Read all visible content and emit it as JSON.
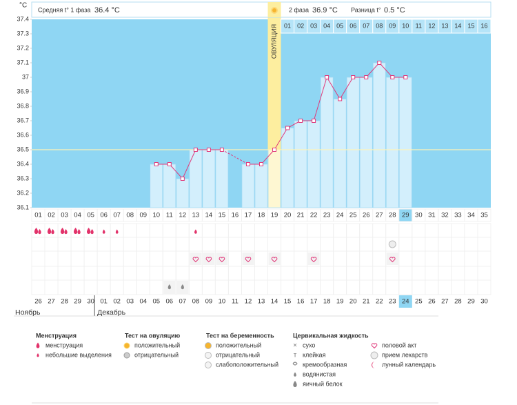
{
  "chart_data": {
    "type": "line",
    "unit_label": "°C",
    "header": {
      "phase1_label": "Средняя t° 1 фаза",
      "phase1_value": "36.4 °C",
      "phase2_label": "2 фаза",
      "phase2_value": "36.9 °C",
      "diff_label": "Разница t°",
      "diff_value": "0.5 °C"
    },
    "ovulation_label": "ОВУЛЯЦИЯ",
    "ovulation_index": 18,
    "categories": [
      "01",
      "02",
      "03",
      "04",
      "05",
      "06",
      "07",
      "08",
      "09",
      "10",
      "11",
      "12",
      "13",
      "14",
      "15",
      "16",
      "17",
      "18",
      "19",
      "20",
      "21",
      "22",
      "23",
      "24",
      "25",
      "26",
      "27",
      "28",
      "29",
      "30",
      "31",
      "32",
      "33",
      "34",
      "35"
    ],
    "luteal_days": [
      "01",
      "02",
      "03",
      "04",
      "05",
      "06",
      "07",
      "08",
      "09",
      "10",
      "11",
      "12",
      "13",
      "14",
      "15",
      "16"
    ],
    "series": [
      {
        "name": "Температура",
        "color": "#e0397a",
        "values": [
          null,
          null,
          null,
          null,
          null,
          null,
          null,
          null,
          null,
          36.4,
          36.4,
          36.3,
          36.5,
          36.5,
          36.5,
          null,
          36.4,
          36.4,
          36.5,
          36.65,
          36.7,
          36.7,
          37.0,
          36.85,
          37.0,
          37.0,
          37.1,
          37.0,
          37.0,
          null,
          null,
          null,
          null,
          null,
          null
        ]
      }
    ],
    "coverline": 36.5,
    "ylim": [
      36.1,
      37.4
    ],
    "yticks": [
      36.1,
      36.2,
      36.3,
      36.4,
      36.5,
      36.6,
      36.7,
      36.8,
      36.9,
      37,
      37.1,
      37.2,
      37.3,
      37.4
    ],
    "dates": [
      "26",
      "27",
      "28",
      "29",
      "30",
      "01",
      "02",
      "03",
      "04",
      "05",
      "06",
      "07",
      "08",
      "09",
      "10",
      "11",
      "12",
      "13",
      "14",
      "15",
      "16",
      "17",
      "18",
      "19",
      "20",
      "21",
      "22",
      "23",
      "24",
      "25",
      "26",
      "27",
      "28",
      "29",
      "30"
    ],
    "weekend_dates": [
      4,
      5,
      11,
      12,
      18,
      19,
      25,
      26,
      32,
      33
    ],
    "today_index": 28,
    "months": [
      {
        "label": "Ноябрь",
        "start": 0
      },
      {
        "label": "Декабрь",
        "start": 5
      }
    ],
    "menstruation_days": [
      0,
      1,
      2,
      3,
      4
    ],
    "spotting_days": [
      5,
      6,
      12
    ],
    "medication_days": [
      27
    ],
    "sex_days": [
      12,
      13,
      14,
      16,
      18,
      21,
      27
    ],
    "watery_days": [
      10,
      11
    ],
    "legend": [
      {
        "title": "Менструация",
        "items": [
          "менструация",
          "небольшие выделения"
        ]
      },
      {
        "title": "Тест на овуляцию",
        "items": [
          "положительный",
          "отрицательный"
        ]
      },
      {
        "title": "Тест на беременность",
        "items": [
          "положительный",
          "отрицательный",
          "слабоположительный"
        ]
      },
      {
        "title": "Цервикальная жидкость",
        "items": [
          "сухо",
          "клейкая",
          "кремообразная",
          "водянистая",
          "яичный белок"
        ]
      },
      {
        "items": [
          "половой акт",
          "прием лекарств",
          "лунный календарь"
        ]
      }
    ]
  }
}
